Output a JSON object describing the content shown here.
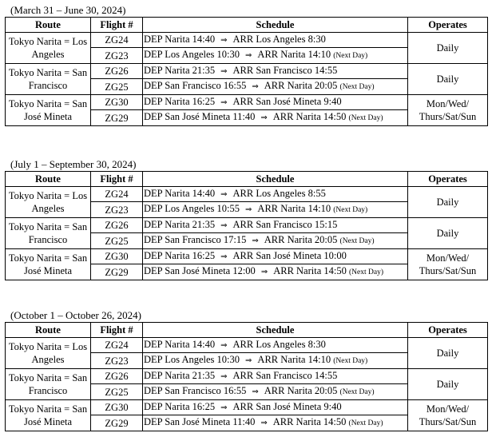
{
  "headers": {
    "route": "Route",
    "flight": "Flight #",
    "schedule": "Schedule",
    "operates": "Operates"
  },
  "arrow_icon": "⇒",
  "next_day_label": "(Next Day)",
  "periods": [
    {
      "caption": "(March 31 – June 30, 2024)",
      "routes": [
        {
          "route": "Tokyo Narita = Los Angeles",
          "operates": "Daily",
          "flights": [
            {
              "flight": "ZG24",
              "dep": "DEP Narita 14:40",
              "arr": "ARR Los Angeles 8:30",
              "next_day": false
            },
            {
              "flight": "ZG23",
              "dep": "DEP Los Angeles 10:30",
              "arr": "ARR Narita 14:10",
              "next_day": true
            }
          ]
        },
        {
          "route": "Tokyo Narita = San Francisco",
          "operates": "Daily",
          "flights": [
            {
              "flight": "ZG26",
              "dep": "DEP Narita 21:35",
              "arr": "ARR San Francisco 14:55",
              "next_day": false
            },
            {
              "flight": "ZG25",
              "dep": "DEP San Francisco 16:55",
              "arr": "ARR Narita 20:05",
              "next_day": true
            }
          ]
        },
        {
          "route": "Tokyo Narita = San José Mineta",
          "operates": "Mon/Wed/ Thurs/Sat/Sun",
          "flights": [
            {
              "flight": "ZG30",
              "dep": "DEP Narita 16:25",
              "arr": "ARR San José Mineta 9:40",
              "next_day": false
            },
            {
              "flight": "ZG29",
              "dep": "DEP San José Mineta 11:40",
              "arr": "ARR Narita 14:50",
              "next_day": true
            }
          ]
        }
      ]
    },
    {
      "caption": "(July 1 – September 30, 2024)",
      "routes": [
        {
          "route": "Tokyo Narita = Los Angeles",
          "operates": "Daily",
          "flights": [
            {
              "flight": "ZG24",
              "dep": "DEP Narita 14:40",
              "arr": "ARR Los Angeles 8:55",
              "next_day": false
            },
            {
              "flight": "ZG23",
              "dep": "DEP Los Angeles 10:55",
              "arr": "ARR Narita 14:10",
              "next_day": true
            }
          ]
        },
        {
          "route": "Tokyo Narita = San Francisco",
          "operates": "Daily",
          "flights": [
            {
              "flight": "ZG26",
              "dep": "DEP Narita 21:35",
              "arr": "ARR San Francisco 15:15",
              "next_day": false
            },
            {
              "flight": "ZG25",
              "dep": "DEP San Francisco 17:15",
              "arr": "ARR Narita 20:05",
              "next_day": true
            }
          ]
        },
        {
          "route": "Tokyo Narita = San José Mineta",
          "operates": "Mon/Wed/ Thurs/Sat/Sun",
          "flights": [
            {
              "flight": "ZG30",
              "dep": "DEP Narita 16:25",
              "arr": "ARR San José Mineta 10:00",
              "next_day": false
            },
            {
              "flight": "ZG29",
              "dep": "DEP San José Mineta 12:00",
              "arr": "ARR Narita 14:50",
              "next_day": true
            }
          ]
        }
      ]
    },
    {
      "caption": "(October 1 – October 26, 2024)",
      "routes": [
        {
          "route": "Tokyo Narita = Los Angeles",
          "operates": "Daily",
          "flights": [
            {
              "flight": "ZG24",
              "dep": "DEP Narita 14:40",
              "arr": "ARR Los Angeles 8:30",
              "next_day": false
            },
            {
              "flight": "ZG23",
              "dep": "DEP Los Angeles 10:30",
              "arr": "ARR Narita 14:10",
              "next_day": true
            }
          ]
        },
        {
          "route": "Tokyo Narita = San Francisco",
          "operates": "Daily",
          "flights": [
            {
              "flight": "ZG26",
              "dep": "DEP Narita 21:35",
              "arr": "ARR San Francisco 14:55",
              "next_day": false
            },
            {
              "flight": "ZG25",
              "dep": "DEP San Francisco 16:55",
              "arr": "ARR Narita 20:05",
              "next_day": true
            }
          ]
        },
        {
          "route": "Tokyo Narita = San José Mineta",
          "operates": "Mon/Wed/ Thurs/Sat/Sun",
          "flights": [
            {
              "flight": "ZG30",
              "dep": "DEP Narita 16:25",
              "arr": "ARR San José Mineta 9:40",
              "next_day": false
            },
            {
              "flight": "ZG29",
              "dep": "DEP San José Mineta 11:40",
              "arr": "ARR Narita 14:50",
              "next_day": true
            }
          ]
        }
      ]
    }
  ]
}
